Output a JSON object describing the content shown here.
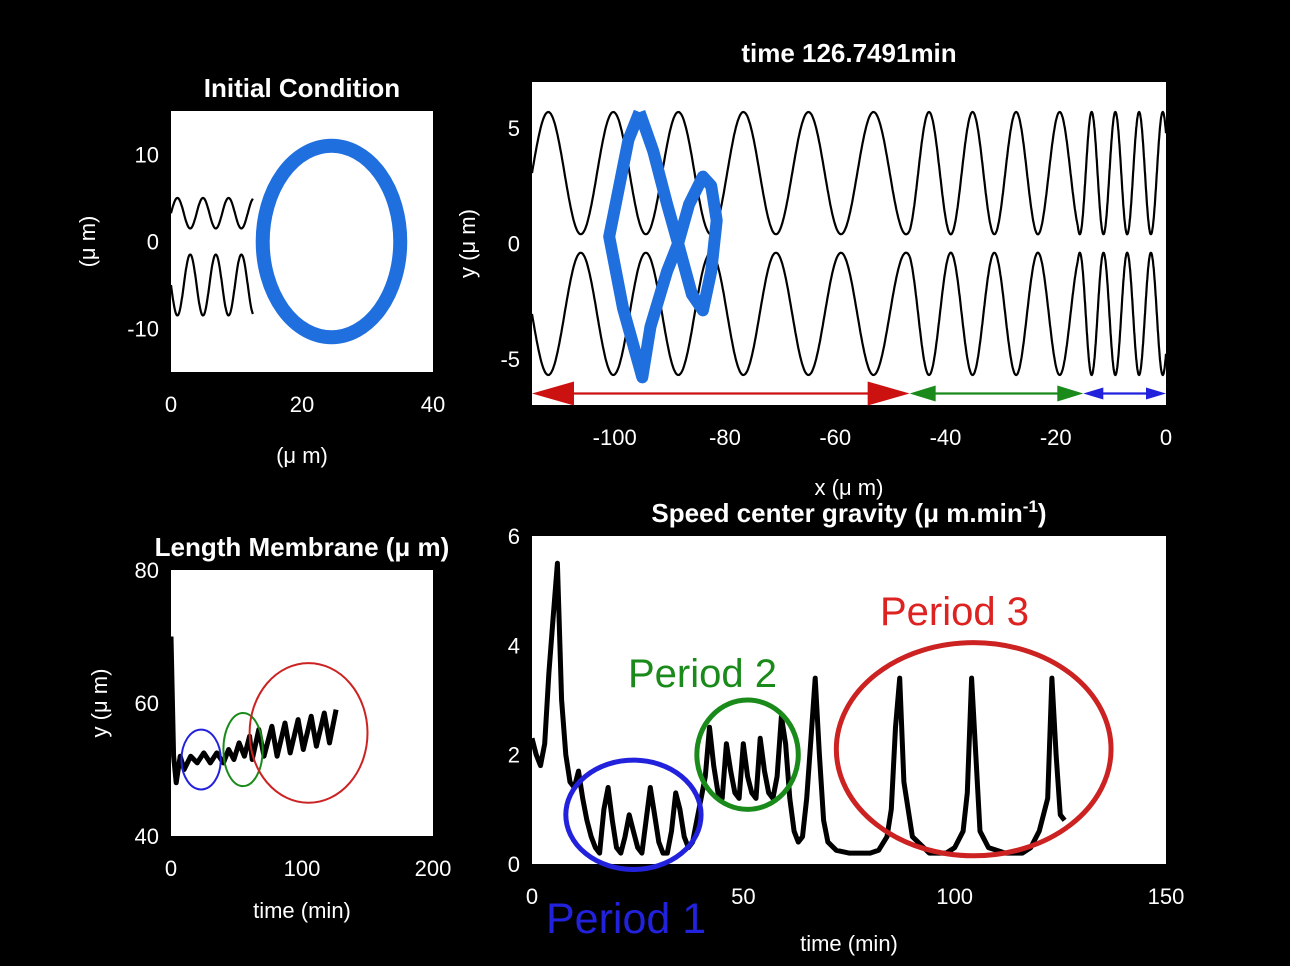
{
  "figure": {
    "background": "#000000",
    "axes_color": "#ffffff",
    "text_color": "#ffffff",
    "line_color": "#000000",
    "cell_color": "#1f6fdf"
  },
  "chart_data": [
    {
      "id": "initial",
      "type": "line",
      "title": "Initial Condition",
      "xlabel": "(μ m)",
      "ylabel": "(μ m)",
      "xlim": [
        0,
        40
      ],
      "ylim": [
        -15,
        15
      ],
      "xticks": [
        "0",
        "20",
        "40"
      ],
      "yticks": [
        "10",
        "0",
        "-10"
      ],
      "channel": {
        "x_start": 0,
        "x_end": 12.5,
        "periods": 3.2,
        "upper_range": [
          1.5,
          5
        ],
        "lower_range": [
          -8.5,
          -1.5
        ]
      },
      "cell": {
        "type": "ellipse",
        "cx": 24.5,
        "cy": 0,
        "rx": 10.5,
        "ry": 11,
        "color": "#1f6fdf"
      }
    },
    {
      "id": "snapshot",
      "type": "line",
      "title": "time 126.7491min",
      "xlabel": "x (μ m)",
      "ylabel": "y (μ m)",
      "xlim": [
        -115,
        0
      ],
      "ylim": [
        -7,
        7
      ],
      "xticks": [
        "-100",
        "-80",
        "-60",
        "-40",
        "-20",
        "0"
      ],
      "yticks": [
        "5",
        "0",
        "-5"
      ],
      "channel": {
        "upper_range": [
          0.4,
          5.7
        ],
        "lower_range": [
          -5.7,
          -0.4
        ],
        "segments": [
          {
            "x0": -115,
            "x1": -46.5,
            "wavelength": 11.8
          },
          {
            "x0": -46.5,
            "x1": -16,
            "wavelength": 7.9
          },
          {
            "x0": -16,
            "x1": 0,
            "wavelength": 4.3
          }
        ]
      },
      "arrows": [
        {
          "x0": -115,
          "x1": -46.5,
          "y": -6.5,
          "color": "#cc1111"
        },
        {
          "x0": -46.5,
          "x1": -15,
          "y": -6.5,
          "color": "#1a8a1a"
        },
        {
          "x0": -15,
          "x1": 0,
          "y": -6.5,
          "color": "#2222dd"
        }
      ],
      "cell_outline": [
        [
          -95.5,
          5.7
        ],
        [
          -97.5,
          4.5
        ],
        [
          -101,
          0.3
        ],
        [
          -98.5,
          -2.8
        ],
        [
          -95,
          -5.8
        ],
        [
          -93.5,
          -3.6
        ],
        [
          -90.5,
          -1.2
        ],
        [
          -88.5,
          0
        ],
        [
          -86,
          -2.2
        ],
        [
          -84,
          -2.9
        ],
        [
          -82.5,
          -1.2
        ],
        [
          -81.5,
          1.0
        ],
        [
          -82.5,
          2.5
        ],
        [
          -84,
          2.9
        ],
        [
          -86.5,
          1.7
        ],
        [
          -88.5,
          0
        ],
        [
          -90.5,
          1.7
        ],
        [
          -93,
          4.0
        ],
        [
          -95.5,
          5.7
        ]
      ],
      "cell_color": "#1f6fdf"
    },
    {
      "id": "length",
      "type": "line",
      "title": "Length Membrane (μ m)",
      "xlabel": "time (min)",
      "ylabel": "y (μ m)",
      "xlim": [
        0,
        200
      ],
      "ylim": [
        40,
        80
      ],
      "xticks": [
        "0",
        "100",
        "200"
      ],
      "yticks": [
        "80",
        "60",
        "40"
      ],
      "series": [
        {
          "x": [
            0,
            2,
            4,
            7,
            10,
            15,
            20,
            25,
            30,
            35,
            40,
            44,
            48,
            52,
            56,
            60,
            62,
            67,
            71,
            77,
            81,
            87,
            91,
            97,
            101,
            107,
            111,
            117,
            121,
            126
          ],
          "y": [
            70,
            52,
            48,
            52,
            50,
            52,
            51,
            52.5,
            51,
            52.5,
            51,
            53,
            51.5,
            54,
            52,
            55,
            51.5,
            56,
            52,
            56.5,
            52,
            57,
            52.5,
            57.5,
            53,
            58,
            53.5,
            58.5,
            54,
            59
          ]
        }
      ],
      "annotations": [
        {
          "type": "ellipse",
          "cx": 23,
          "cy": 51.5,
          "rx": 15,
          "ry": 4.5,
          "color": "#2222dd"
        },
        {
          "type": "ellipse",
          "cx": 55,
          "cy": 53,
          "rx": 15,
          "ry": 5.5,
          "color": "#1a8a1a"
        },
        {
          "type": "ellipse",
          "cx": 105,
          "cy": 55.5,
          "rx": 45,
          "ry": 10.5,
          "color": "#cc2222"
        }
      ]
    },
    {
      "id": "speed",
      "type": "line",
      "title": "Speed center gravity (μ m.min",
      "title_sup": "-1",
      "title_end": ")",
      "xlabel": "time (min)",
      "xlim": [
        0,
        150
      ],
      "ylim": [
        0,
        6
      ],
      "xticks": [
        "0",
        "50",
        "100",
        "150"
      ],
      "yticks": [
        "6",
        "4",
        "2",
        "0"
      ],
      "series": [
        {
          "x": [
            0,
            1,
            2,
            3,
            4,
            5,
            6,
            7,
            8,
            9,
            10,
            11,
            12,
            13,
            14,
            15,
            16,
            17,
            18,
            19,
            20,
            21,
            22,
            23,
            24,
            25,
            26,
            27,
            28,
            29,
            30,
            31,
            32,
            33,
            34,
            35,
            36,
            37,
            38,
            39,
            40,
            41,
            42,
            43,
            44,
            45,
            46,
            47,
            48,
            49,
            50,
            51,
            52,
            53,
            54,
            55,
            56,
            57,
            58,
            59,
            60,
            61,
            62,
            63,
            64,
            65,
            66,
            67,
            68,
            69,
            70,
            72,
            75,
            80,
            82,
            84,
            85,
            86,
            87,
            88,
            90,
            94,
            98,
            100,
            102,
            103,
            104,
            105,
            106,
            108,
            112,
            116,
            118,
            120,
            122,
            123,
            124,
            125,
            126
          ],
          "y": [
            2.3,
            2.0,
            1.8,
            2.2,
            3.5,
            4.5,
            5.5,
            3.0,
            2.0,
            1.5,
            1.4,
            1.7,
            1.2,
            0.8,
            0.5,
            0.3,
            0.2,
            1.0,
            1.4,
            0.8,
            0.3,
            0.2,
            0.5,
            0.9,
            0.6,
            0.3,
            0.2,
            0.8,
            1.4,
            0.9,
            0.4,
            0.2,
            0.2,
            0.6,
            1.3,
            1.0,
            0.5,
            0.3,
            0.4,
            0.8,
            1.2,
            1.6,
            2.5,
            1.8,
            1.3,
            1.2,
            2.2,
            1.7,
            1.3,
            1.2,
            2.2,
            1.6,
            1.3,
            1.2,
            2.3,
            1.7,
            1.3,
            1.2,
            1.6,
            2.7,
            2.2,
            1.2,
            0.6,
            0.4,
            0.5,
            1.2,
            2.3,
            3.4,
            2.0,
            0.8,
            0.4,
            0.25,
            0.2,
            0.2,
            0.25,
            0.5,
            1.0,
            2.5,
            3.4,
            1.5,
            0.5,
            0.2,
            0.2,
            0.3,
            0.6,
            1.3,
            3.4,
            2.0,
            0.6,
            0.3,
            0.2,
            0.2,
            0.3,
            0.6,
            1.2,
            3.4,
            2.0,
            0.9,
            0.8
          ]
        }
      ],
      "annotations": [
        {
          "type": "ellipse",
          "cx": 24,
          "cy": 0.9,
          "rx": 16,
          "ry": 1.0,
          "color": "#2222dd"
        },
        {
          "type": "ellipse",
          "cx": 51,
          "cy": 2.0,
          "rx": 12,
          "ry": 1.0,
          "color": "#1a8a1a"
        },
        {
          "type": "ellipse",
          "cx": 104.5,
          "cy": 2.1,
          "rx": 32.5,
          "ry": 1.95,
          "color": "#cc2222"
        }
      ]
    }
  ],
  "labels": [
    {
      "text": "Period 1",
      "color": "#2222dd"
    },
    {
      "text": "Period 2",
      "color": "#1a8a1a"
    },
    {
      "text": "Period 3",
      "color": "#dd2222"
    }
  ]
}
